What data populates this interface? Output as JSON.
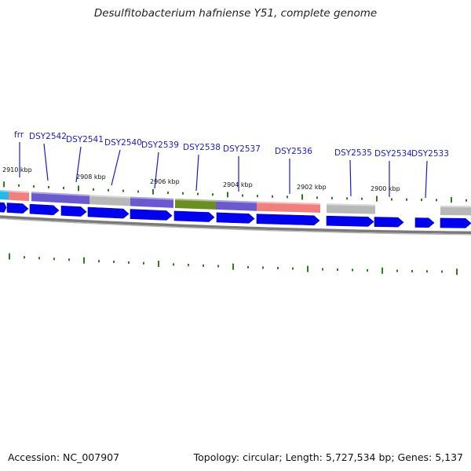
{
  "header": {
    "title": "Desulfitobacterium hafniense Y51, complete genome"
  },
  "footer": {
    "accession": "Accession: NC_007907",
    "summary": "Topology: circular; Length: 5,727,534 bp; Genes: 5,137"
  },
  "colors": {
    "gene_arrow": "#0000ee",
    "backbone": "#7a7a7a",
    "tick": "#2e7d1a",
    "label": "#1a1acd",
    "label_line": "#1a1acd"
  },
  "scale_labels": [
    {
      "text": "2910 kbp"
    },
    {
      "text": "2908 kbp"
    },
    {
      "text": "2906 kbp"
    },
    {
      "text": "2904 kbp"
    },
    {
      "text": "2902 kbp"
    },
    {
      "text": "2900 kbp"
    }
  ],
  "gene_labels": [
    {
      "text": "frr"
    },
    {
      "text": "DSY2542"
    },
    {
      "text": "DSY2541"
    },
    {
      "text": "DSY2540"
    },
    {
      "text": "DSY2539"
    },
    {
      "text": "DSY2538"
    },
    {
      "text": "DSY2537"
    },
    {
      "text": "DSY2536"
    },
    {
      "text": "DSY2535"
    },
    {
      "text": "DSY2534"
    },
    {
      "text": "DSY2533"
    }
  ],
  "cog_colors": [
    "#29b6e8",
    "#f08080",
    "#6a5acd",
    "#6a5acd",
    "#b8b8b8",
    "#6a5acd",
    "#6b8e23",
    "#6a5acd",
    "#f08080",
    "#b8b8b8",
    "#b8b8b8"
  ]
}
